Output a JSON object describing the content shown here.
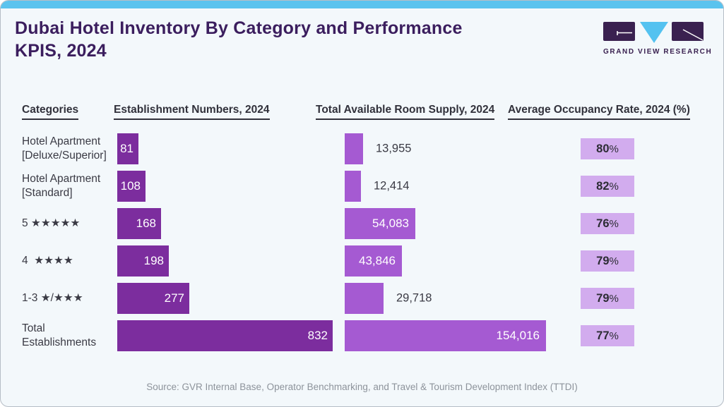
{
  "header": {
    "title": "Dubai Hotel Inventory By Category and Performance KPIS, 2024",
    "logo_brand": "GRAND VIEW RESEARCH"
  },
  "columns": {
    "categories": "Categories",
    "establishments": "Establishment Numbers, 2024",
    "room_supply": "Total Available Room Supply, 2024",
    "occupancy": "Average Occupancy Rate, 2024 (%)"
  },
  "chart_data": {
    "type": "bar",
    "orientation": "horizontal",
    "title": "Dubai Hotel Inventory By Category and Performance KPIS, 2024",
    "categories": [
      "Hotel Apartment [Deluxe/Superior]",
      "Hotel Apartment [Standard]",
      "5 ★★★★★",
      "4 ★★★★",
      "1-3 ★/★★★",
      "Total Establishments"
    ],
    "series": [
      {
        "name": "Establishment Numbers, 2024",
        "values": [
          81,
          108,
          168,
          198,
          277,
          832
        ]
      },
      {
        "name": "Total Available Room Supply, 2024",
        "values": [
          13955,
          12414,
          54083,
          43846,
          29718,
          154016
        ]
      },
      {
        "name": "Average Occupancy Rate, 2024 (%)",
        "values": [
          80,
          82,
          76,
          79,
          79,
          77
        ]
      }
    ],
    "legend_position": "none",
    "grid": false
  },
  "rows": [
    {
      "category": "Hotel Apartment [Deluxe/Superior]",
      "establishments": 81,
      "establishments_label": "81",
      "room_supply": 13955,
      "room_supply_label": "13,955",
      "occupancy": "80",
      "occupancy_unit": "%"
    },
    {
      "category": "Hotel Apartment [Standard]",
      "establishments": 108,
      "establishments_label": "108",
      "room_supply": 12414,
      "room_supply_label": "12,414",
      "occupancy": "82",
      "occupancy_unit": "%"
    },
    {
      "category": "5 ★★★★★",
      "establishments": 168,
      "establishments_label": "168",
      "room_supply": 54083,
      "room_supply_label": "54,083",
      "occupancy": "76",
      "occupancy_unit": "%"
    },
    {
      "category": "4  ★★★★",
      "establishments": 198,
      "establishments_label": "198",
      "room_supply": 43846,
      "room_supply_label": "43,846",
      "occupancy": "79",
      "occupancy_unit": "%"
    },
    {
      "category": "1-3 ★/★★★",
      "establishments": 277,
      "establishments_label": "277",
      "room_supply": 29718,
      "room_supply_label": "29,718",
      "occupancy": "79",
      "occupancy_unit": "%"
    },
    {
      "category": "Total Establishments",
      "establishments": 832,
      "establishments_label": "832",
      "room_supply": 154016,
      "room_supply_label": "154,016",
      "occupancy": "77",
      "occupancy_unit": "%"
    }
  ],
  "footer": {
    "source": "Source: GVR Internal Base, Operator Benchmarking, and Travel & Tourism Development Index (TTDI)"
  },
  "colors": {
    "top_strip": "#5bc3ee",
    "panel_bg": "#f3f8fb",
    "title": "#3b1e5e",
    "bar_establishments": "#7c2d9e",
    "bar_room_supply": "#a55ad2",
    "badge_occupancy": "#d2acee",
    "text_dark": "#31313b",
    "source_text": "#8d939b"
  }
}
